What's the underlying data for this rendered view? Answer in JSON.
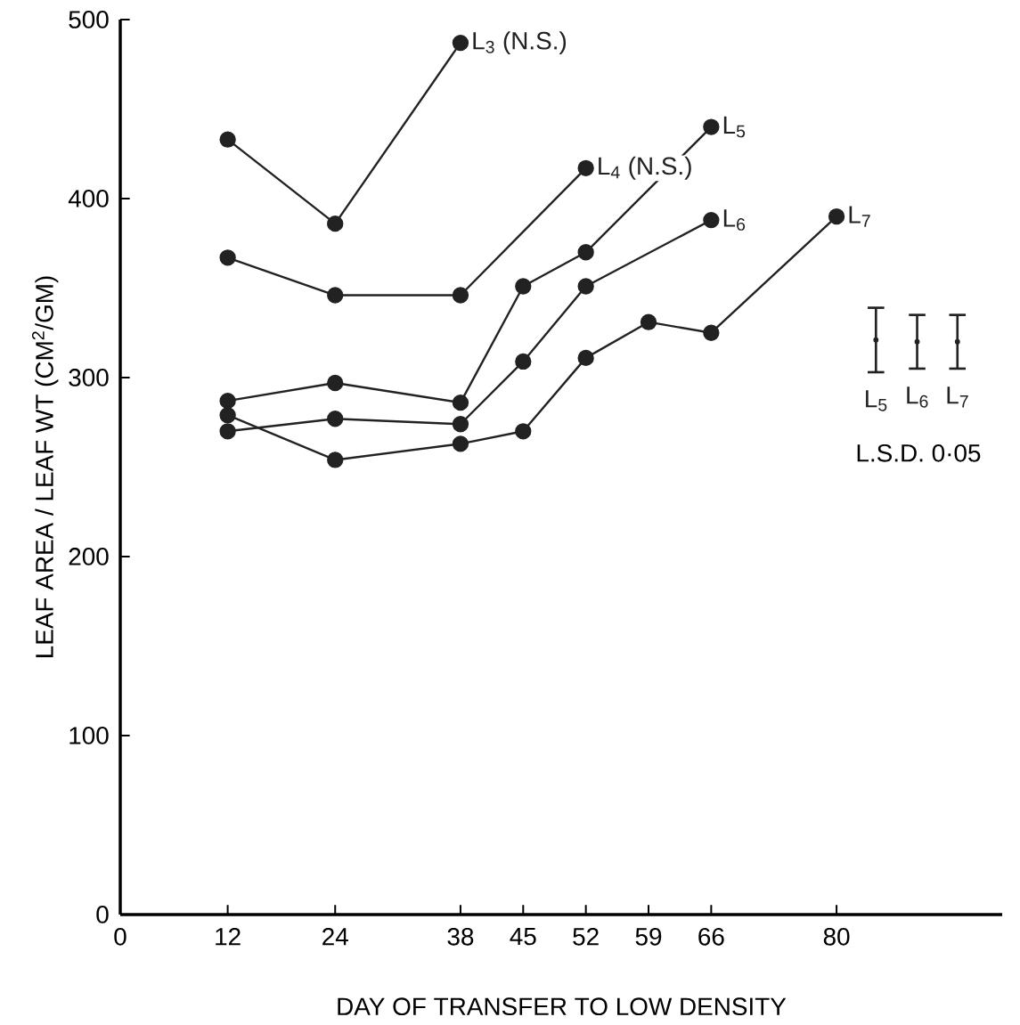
{
  "chart_data": {
    "type": "line",
    "xlabel": "DAY OF TRANSFER TO LOW DENSITY",
    "ylabel": "LEAF AREA / LEAF WT    (CM$^{2}$/GM)",
    "xlim": [
      0,
      98.5
    ],
    "ylim": [
      0,
      500
    ],
    "xticks": [
      0,
      12,
      24,
      38,
      45,
      52,
      59,
      66,
      80
    ],
    "yticks": [
      0,
      100,
      200,
      300,
      400,
      500
    ],
    "marker": "circle",
    "line_style": "solid",
    "grid": false,
    "series": [
      {
        "name": "L$_{3}$ (N.S.)",
        "color": "#222222",
        "x": [
          12,
          24,
          38
        ],
        "values": [
          433,
          386,
          487
        ]
      },
      {
        "name": "L$_{4}$ (N.S.)",
        "color": "#222222",
        "x": [
          12,
          24,
          38,
          52
        ],
        "values": [
          367,
          346,
          346,
          417
        ]
      },
      {
        "name": "L$_{5}$",
        "color": "#222222",
        "x": [
          12,
          24,
          38,
          45,
          52,
          66
        ],
        "values": [
          287,
          297,
          286,
          351,
          370,
          440
        ]
      },
      {
        "name": "L$_{6}$",
        "color": "#222222",
        "x": [
          12,
          24,
          38,
          45,
          52,
          66
        ],
        "values": [
          270,
          277,
          274,
          309,
          351,
          388
        ]
      },
      {
        "name": "L$_{7}$",
        "color": "#222222",
        "x": [
          12,
          24,
          38,
          45,
          52,
          59,
          66,
          80
        ],
        "values": [
          279,
          254,
          263,
          270,
          311,
          331,
          325,
          390
        ]
      },
      {
        "type": "scatter",
        "marker": "none",
        "name": "L$_{5}$",
        "color": "#222222",
        "x": [
          84.4
        ],
        "values": [
          321
        ],
        "errors": [
          18
        ]
      },
      {
        "type": "scatter",
        "marker": "none",
        "name": "L$_{6}$",
        "color": "#222222",
        "x": [
          89
        ],
        "values": [
          320
        ],
        "errors": [
          15
        ]
      },
      {
        "type": "scatter",
        "marker": "none",
        "name": "L$_{7}$",
        "color": "#222222",
        "x": [
          93.5
        ],
        "values": [
          320
        ],
        "errors": [
          15
        ]
      }
    ],
    "annotations": [
      "L.S.D.  0·05"
    ]
  }
}
